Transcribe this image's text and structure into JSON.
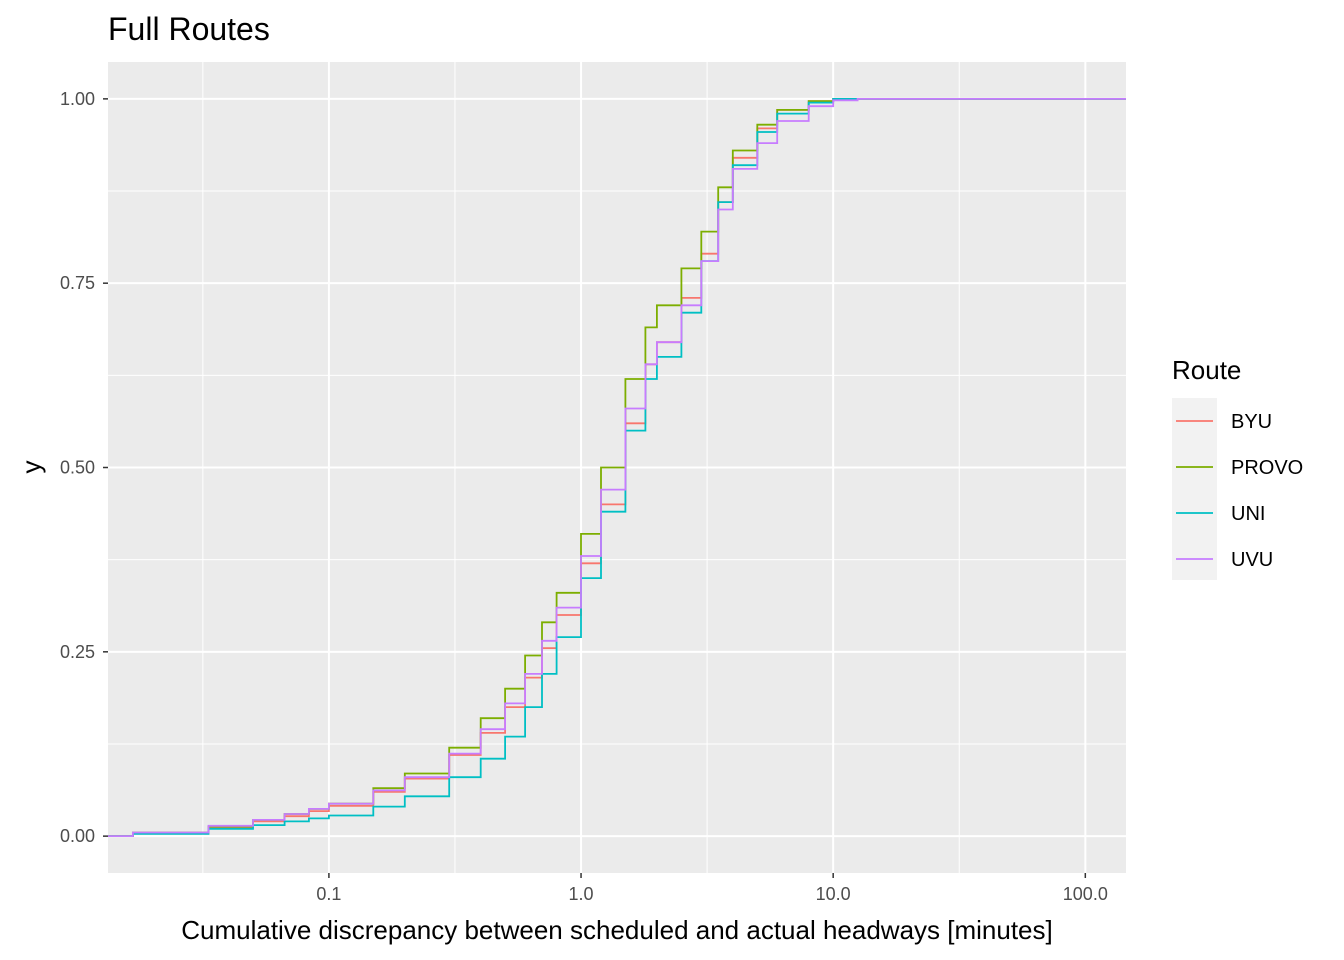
{
  "chart_data": {
    "type": "line",
    "step": true,
    "title": "Full Routes",
    "xlabel": "Cumulative discrepancy between scheduled and actual headways [minutes]",
    "ylabel": "y",
    "x_scale": "log10",
    "xlim": [
      0.0133,
      145
    ],
    "ylim": [
      -0.05,
      1.05
    ],
    "x_ticks": [
      0.1,
      1.0,
      10.0,
      100.0
    ],
    "x_tick_labels": [
      "0.1",
      "1.0",
      "10.0",
      "100.0"
    ],
    "y_ticks": [
      0,
      0.25,
      0.5,
      0.75,
      1.0
    ],
    "y_tick_labels": [
      "0.00",
      "0.25",
      "0.50",
      "0.75",
      "1.00"
    ],
    "grid": true,
    "legend": {
      "title": "Route",
      "position": "right"
    },
    "series": [
      {
        "name": "BYU",
        "color": "#F8766D",
        "points": [
          [
            0.0133,
            0
          ],
          [
            0.0167,
            0.004
          ],
          [
            0.0333,
            0.012
          ],
          [
            0.05,
            0.02
          ],
          [
            0.0667,
            0.027
          ],
          [
            0.0833,
            0.034
          ],
          [
            0.1,
            0.041
          ],
          [
            0.15,
            0.06
          ],
          [
            0.2,
            0.078
          ],
          [
            0.3,
            0.11
          ],
          [
            0.4,
            0.14
          ],
          [
            0.5,
            0.175
          ],
          [
            0.6,
            0.215
          ],
          [
            0.7,
            0.255
          ],
          [
            0.8,
            0.3
          ],
          [
            1.0,
            0.37
          ],
          [
            1.2,
            0.45
          ],
          [
            1.5,
            0.56
          ],
          [
            1.8,
            0.64
          ],
          [
            2.0,
            0.67
          ],
          [
            2.5,
            0.73
          ],
          [
            3.0,
            0.79
          ],
          [
            3.5,
            0.86
          ],
          [
            4.0,
            0.92
          ],
          [
            5.0,
            0.96
          ],
          [
            6.0,
            0.985
          ],
          [
            8.0,
            0.997
          ],
          [
            10.0,
            1.0
          ],
          [
            145,
            1.0
          ]
        ]
      },
      {
        "name": "PROVO",
        "color": "#7CAE00",
        "points": [
          [
            0.0133,
            0
          ],
          [
            0.0167,
            0.005
          ],
          [
            0.0333,
            0.013
          ],
          [
            0.05,
            0.022
          ],
          [
            0.0667,
            0.03
          ],
          [
            0.0833,
            0.037
          ],
          [
            0.1,
            0.044
          ],
          [
            0.15,
            0.065
          ],
          [
            0.2,
            0.085
          ],
          [
            0.3,
            0.12
          ],
          [
            0.4,
            0.16
          ],
          [
            0.5,
            0.2
          ],
          [
            0.6,
            0.245
          ],
          [
            0.7,
            0.29
          ],
          [
            0.8,
            0.33
          ],
          [
            1.0,
            0.41
          ],
          [
            1.2,
            0.5
          ],
          [
            1.5,
            0.62
          ],
          [
            1.8,
            0.69
          ],
          [
            2.0,
            0.72
          ],
          [
            2.5,
            0.77
          ],
          [
            3.0,
            0.82
          ],
          [
            3.5,
            0.88
          ],
          [
            4.0,
            0.93
          ],
          [
            5.0,
            0.965
          ],
          [
            6.0,
            0.985
          ],
          [
            8.0,
            0.997
          ],
          [
            10.0,
            1.0
          ],
          [
            145,
            1.0
          ]
        ]
      },
      {
        "name": "UNI",
        "color": "#00BFC4",
        "points": [
          [
            0.0133,
            0
          ],
          [
            0.0167,
            0.003
          ],
          [
            0.0333,
            0.01
          ],
          [
            0.05,
            0.015
          ],
          [
            0.0667,
            0.02
          ],
          [
            0.0833,
            0.024
          ],
          [
            0.1,
            0.028
          ],
          [
            0.15,
            0.04
          ],
          [
            0.2,
            0.054
          ],
          [
            0.3,
            0.08
          ],
          [
            0.4,
            0.105
          ],
          [
            0.5,
            0.135
          ],
          [
            0.6,
            0.175
          ],
          [
            0.7,
            0.22
          ],
          [
            0.8,
            0.27
          ],
          [
            1.0,
            0.35
          ],
          [
            1.2,
            0.44
          ],
          [
            1.5,
            0.55
          ],
          [
            1.8,
            0.62
          ],
          [
            2.0,
            0.65
          ],
          [
            2.5,
            0.71
          ],
          [
            3.0,
            0.78
          ],
          [
            3.5,
            0.86
          ],
          [
            4.0,
            0.91
          ],
          [
            5.0,
            0.955
          ],
          [
            6.0,
            0.98
          ],
          [
            8.0,
            0.995
          ],
          [
            10.0,
            1.0
          ],
          [
            145,
            1.0
          ]
        ]
      },
      {
        "name": "UVU",
        "color": "#C77CFF",
        "points": [
          [
            0.0133,
            0
          ],
          [
            0.0167,
            0.005
          ],
          [
            0.0333,
            0.014
          ],
          [
            0.05,
            0.022
          ],
          [
            0.0667,
            0.03
          ],
          [
            0.0833,
            0.037
          ],
          [
            0.1,
            0.044
          ],
          [
            0.15,
            0.062
          ],
          [
            0.2,
            0.08
          ],
          [
            0.3,
            0.112
          ],
          [
            0.4,
            0.145
          ],
          [
            0.5,
            0.18
          ],
          [
            0.6,
            0.22
          ],
          [
            0.7,
            0.265
          ],
          [
            0.8,
            0.31
          ],
          [
            1.0,
            0.38
          ],
          [
            1.2,
            0.47
          ],
          [
            1.5,
            0.58
          ],
          [
            1.8,
            0.64
          ],
          [
            2.0,
            0.67
          ],
          [
            2.5,
            0.72
          ],
          [
            3.0,
            0.78
          ],
          [
            3.5,
            0.85
          ],
          [
            4.0,
            0.905
          ],
          [
            5.0,
            0.94
          ],
          [
            6.0,
            0.97
          ],
          [
            8.0,
            0.99
          ],
          [
            10.0,
            0.998
          ],
          [
            12.5,
            1.0
          ],
          [
            145,
            1.0
          ]
        ]
      }
    ]
  }
}
